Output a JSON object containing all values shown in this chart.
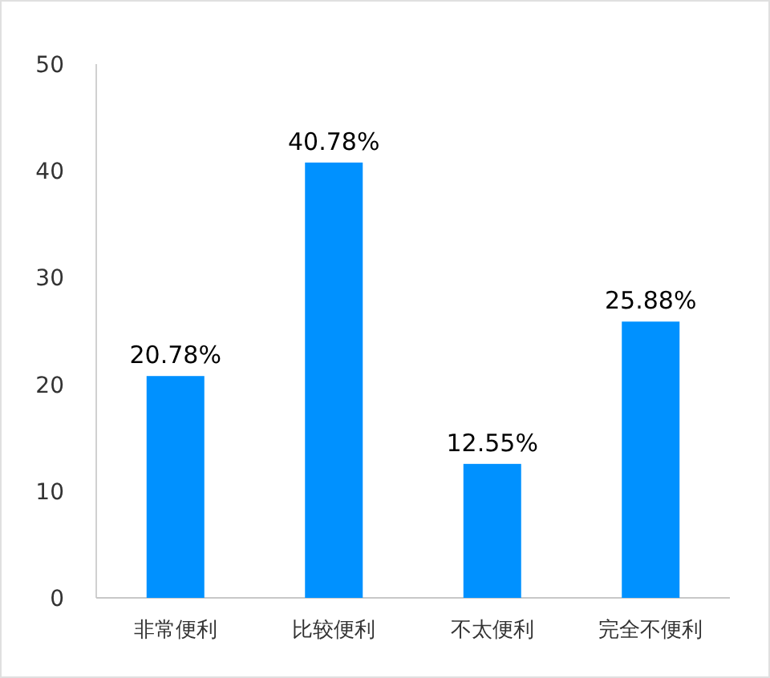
{
  "chart_data": {
    "type": "bar",
    "categories": [
      "非常便利",
      "比较便利",
      "不太便利",
      "完全不便利"
    ],
    "values": [
      20.78,
      40.78,
      12.55,
      25.88
    ],
    "value_labels": [
      "20.78%",
      "40.78%",
      "12.55%",
      "25.88%"
    ],
    "color": "#0091ff",
    "ylim": [
      0,
      50
    ],
    "yticks": [
      0,
      10,
      20,
      30,
      40,
      50
    ],
    "grid": false
  }
}
